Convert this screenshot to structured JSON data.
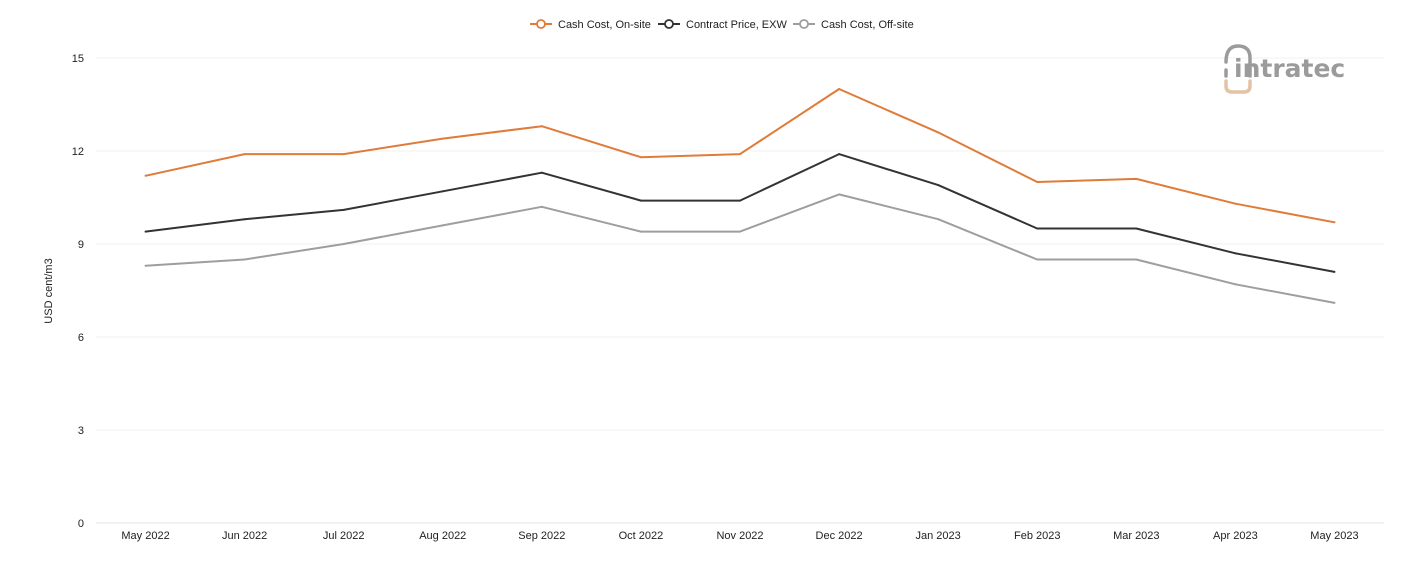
{
  "chart_data": {
    "type": "line",
    "title": "",
    "xlabel": "",
    "ylabel": "USD cent/m3",
    "ylim": [
      0,
      15
    ],
    "yticks": [
      0,
      3,
      6,
      9,
      12,
      15
    ],
    "grid": true,
    "legend_position": "top-center",
    "categories": [
      "May 2022",
      "Jun 2022",
      "Jul 2022",
      "Aug 2022",
      "Sep 2022",
      "Oct 2022",
      "Nov 2022",
      "Dec 2022",
      "Jan 2023",
      "Feb 2023",
      "Mar 2023",
      "Apr 2023",
      "May 2023"
    ],
    "series": [
      {
        "name": "Cash Cost, On-site",
        "color": "#e07b39",
        "values": [
          11.2,
          11.9,
          11.9,
          12.4,
          12.8,
          11.8,
          11.9,
          14.0,
          12.6,
          11.0,
          11.1,
          10.3,
          9.7
        ]
      },
      {
        "name": "Contract Price, EXW",
        "color": "#333333",
        "values": [
          9.4,
          9.8,
          10.1,
          10.7,
          11.3,
          10.4,
          10.4,
          11.9,
          10.9,
          9.5,
          9.5,
          8.7,
          8.1
        ]
      },
      {
        "name": "Cash Cost, Off-site",
        "color": "#9e9e9e",
        "values": [
          8.3,
          8.5,
          9.0,
          9.6,
          10.2,
          9.4,
          9.4,
          10.6,
          9.8,
          8.5,
          8.5,
          7.7,
          7.1
        ]
      }
    ]
  },
  "logo": {
    "text": "intratec",
    "icon": "intratec-logo-icon",
    "colors": {
      "gray": "#9b9b9b",
      "tan": "#e2c3a4"
    }
  }
}
